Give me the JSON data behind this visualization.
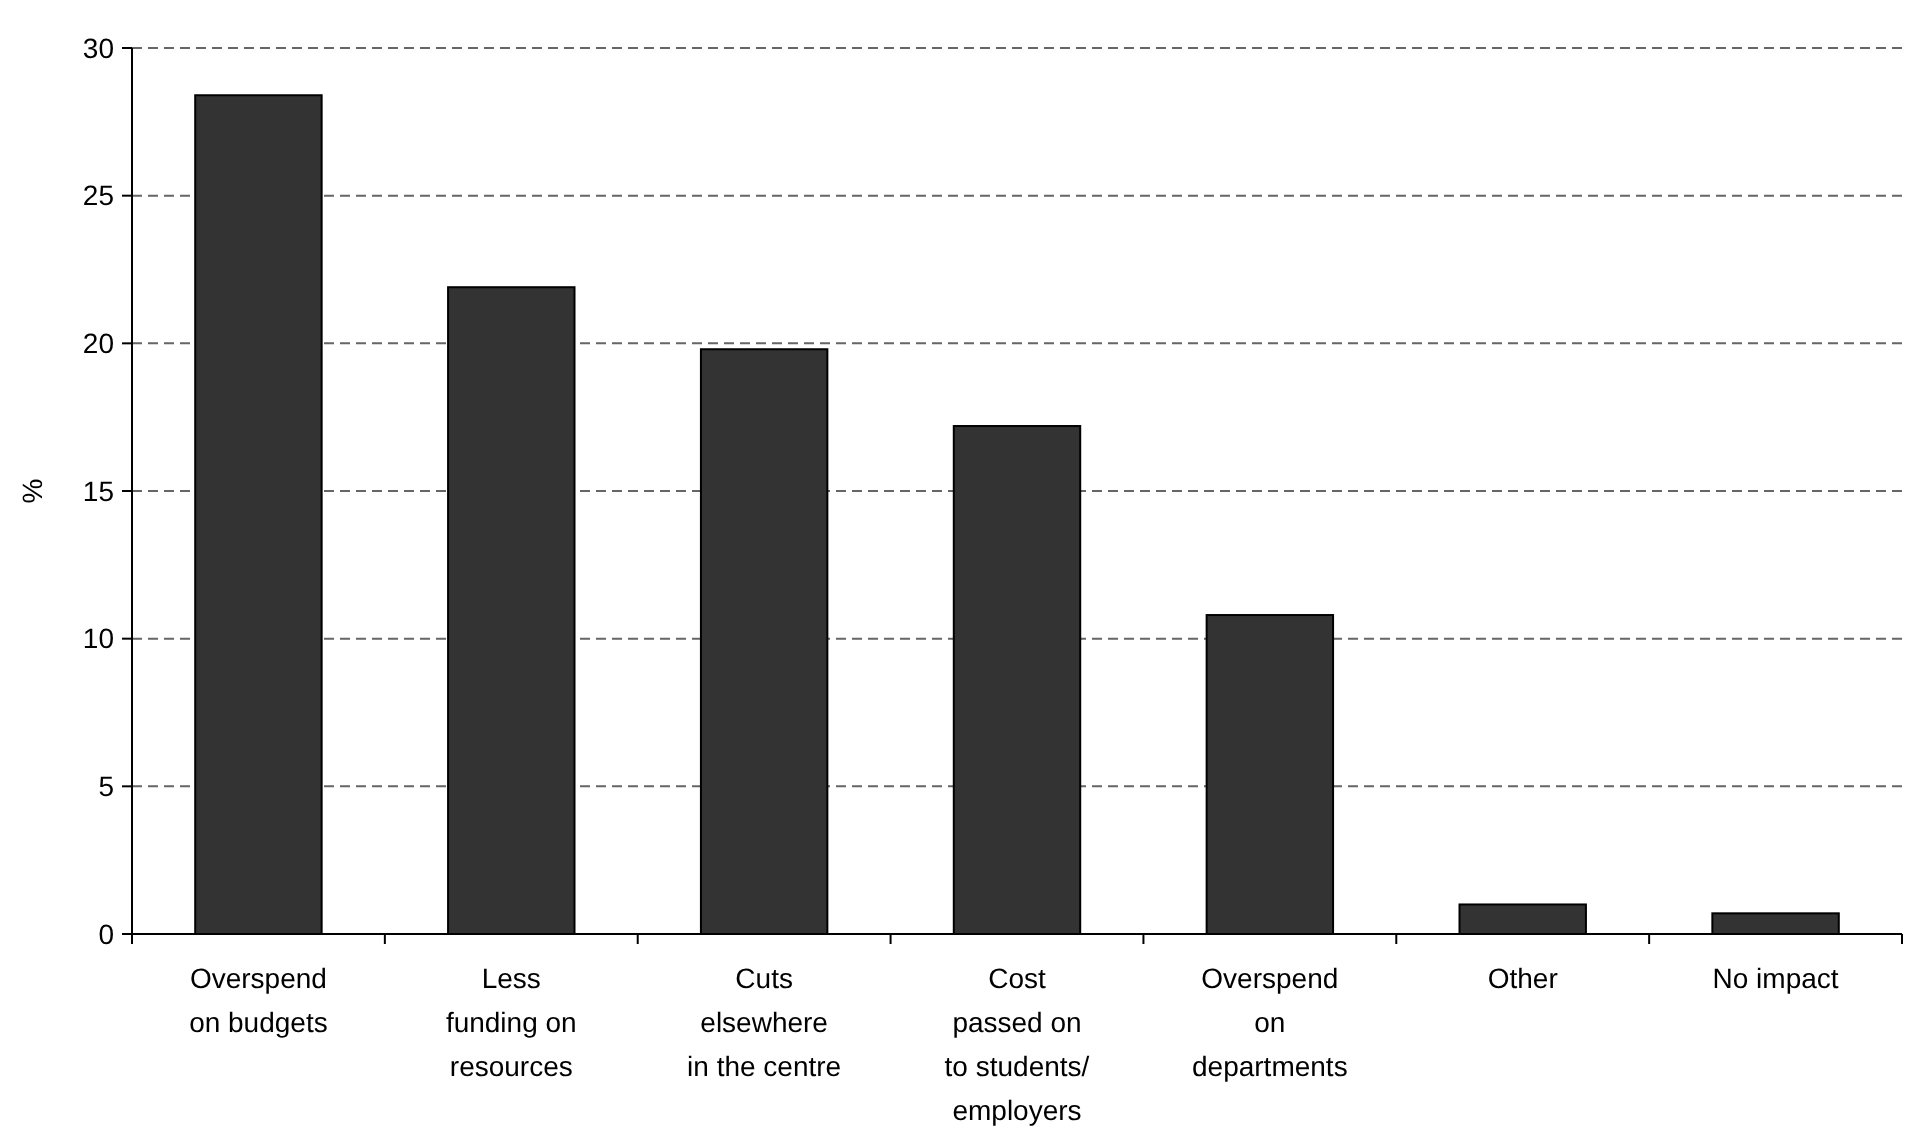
{
  "chart_data": {
    "type": "bar",
    "ylabel": "%",
    "categories": [
      "Overspend\non budgets",
      "Less\nfunding on\nresources",
      "Cuts\nelsewhere\nin the centre",
      "Cost\npassed on\nto students/\nemployers",
      "Overspend\non\ndepartments",
      "Other",
      "No impact"
    ],
    "values": [
      28.4,
      21.9,
      19.8,
      17.2,
      10.8,
      1.0,
      0.7
    ],
    "color": "#333333",
    "ylim": [
      0,
      30
    ],
    "yticks": [
      0,
      5,
      10,
      15,
      20,
      25,
      30
    ],
    "grid": "y"
  }
}
